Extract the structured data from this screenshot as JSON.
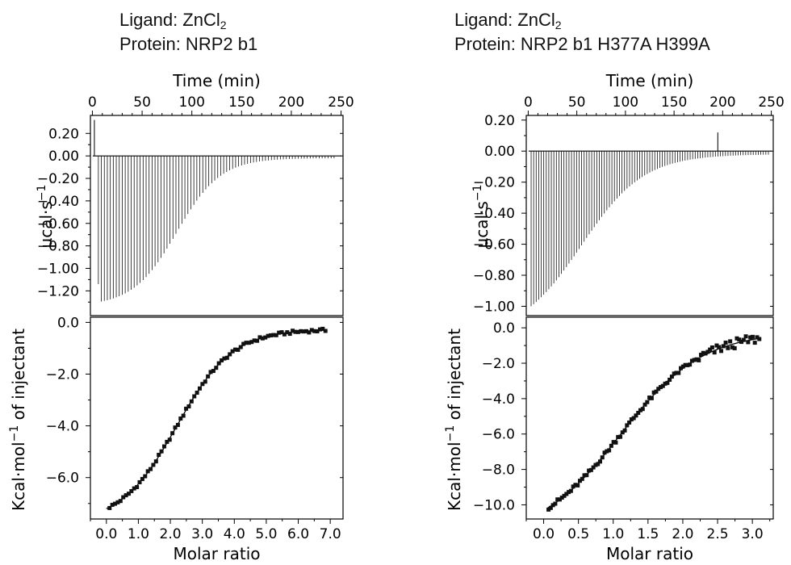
{
  "panels": [
    {
      "ligand_prefix": "Ligand: ZnCl",
      "ligand_subscript": "2",
      "protein_label": "Protein: NRP2 b1"
    },
    {
      "ligand_prefix": "Ligand: ZnCl",
      "ligand_subscript": "2",
      "protein_label": "Protein: NRP2 b1 H377A H399A"
    }
  ],
  "chart_data": [
    {
      "type": "line",
      "panel": "left-raw-thermogram",
      "xlabel": "Time (min)",
      "ylabel": "µcal·s−1",
      "xlim": [
        -2,
        252
      ],
      "ylim": [
        -1.42,
        0.36
      ],
      "x_ticks": [
        0,
        50,
        100,
        150,
        200,
        250
      ],
      "y_ticks": [
        0.2,
        0.0,
        -0.2,
        -0.4,
        -0.6,
        -0.8,
        -1.0,
        -1.2
      ],
      "y_tick_labels": [
        "0.20",
        "0.00",
        "−0.20",
        "−0.40",
        "−0.60",
        "−0.80",
        "−1.00",
        "−1.20"
      ],
      "baseline": 0.0,
      "initial_spike": {
        "time": 2,
        "value": 0.32
      },
      "injections": {
        "count": 80,
        "first_time": 6,
        "last_time": 243,
        "peak_first": -1.14,
        "peak_min": -1.3,
        "peak_last": -0.02,
        "description": "exothermic peaks, near -1.3 for the first ~50 min, decaying sigmoidally to ~0 by 250 min"
      }
    },
    {
      "type": "scatter",
      "panel": "left-binding-isotherm",
      "xlabel": "Molar ratio",
      "ylabel": "Kcal·mol−1 of injectant",
      "xlim": [
        -0.5,
        7.4
      ],
      "ylim": [
        -7.6,
        0.2
      ],
      "x_ticks": [
        0.0,
        1.0,
        2.0,
        3.0,
        4.0,
        5.0,
        6.0,
        7.0
      ],
      "x_tick_labels": [
        "0.0",
        "1.0",
        "2.0",
        "3.0",
        "4.0",
        "5.0",
        "6.0",
        "7.0"
      ],
      "y_ticks": [
        0.0,
        -2.0,
        -4.0,
        -6.0
      ],
      "y_tick_labels": [
        "0.0",
        "−2.0",
        "−4.0",
        "−6.0"
      ],
      "fit": {
        "x_start": 0.0,
        "x_end": 6.9,
        "y_min": -7.2,
        "y_max": -0.3,
        "x_mid": 2.2,
        "slope": 1.15
      },
      "points": {
        "count": 80,
        "x_start": 0.1,
        "x_end": 6.85,
        "description": "sigmoidal rise from about -7.0 at molar ratio 0.1 to about -0.3 at 6.8"
      }
    },
    {
      "type": "line",
      "panel": "right-raw-thermogram",
      "xlabel": "Time (min)",
      "ylabel": "µcal·s−1",
      "xlim": [
        -2,
        252
      ],
      "ylim": [
        -1.06,
        0.23
      ],
      "x_ticks": [
        0,
        50,
        100,
        150,
        200,
        250
      ],
      "y_ticks": [
        0.2,
        0.0,
        -0.2,
        -0.4,
        -0.6,
        -0.8,
        -1.0
      ],
      "y_tick_labels": [
        "0.20",
        "0.00",
        "−0.20",
        "−0.40",
        "−0.60",
        "−0.80",
        "−1.00"
      ],
      "baseline": 0.0,
      "spike": {
        "time": 195,
        "value": 0.12
      },
      "injections": {
        "count": 95,
        "first_time": 3,
        "last_time": 247,
        "peak_first": -1.0,
        "peak_last": -0.02,
        "description": "exothermic peaks decaying from about -1.0 to near 0 around 200 min"
      }
    },
    {
      "type": "scatter",
      "panel": "right-binding-isotherm",
      "xlabel": "Molar ratio",
      "ylabel": "Kcal·mol−1 of injectant",
      "xlim": [
        -0.25,
        3.3
      ],
      "ylim": [
        -10.8,
        0.6
      ],
      "x_ticks": [
        0.0,
        0.5,
        1.0,
        1.5,
        2.0,
        2.5,
        3.0
      ],
      "x_tick_labels": [
        "0.0",
        "0.5",
        "1.0",
        "1.5",
        "2.0",
        "2.5",
        "3.0"
      ],
      "y_ticks": [
        0.0,
        -2.0,
        -4.0,
        -6.0,
        -8.0,
        -10.0
      ],
      "y_tick_labels": [
        "0.0",
        "−2.0",
        "−4.0",
        "−6.0",
        "−8.0",
        "−10.0"
      ],
      "fit": {
        "x_start": 0.05,
        "x_end": 3.1,
        "y_min": -10.2,
        "y_max": -0.6,
        "x_mid": 1.1,
        "slope": 1.7
      },
      "points": {
        "count": 95,
        "x_start": 0.07,
        "x_end": 3.1,
        "description": "rise from about -10.2 at molar ratio 0.07 to about -0.6 at 3.1, scattered near the top"
      }
    }
  ]
}
